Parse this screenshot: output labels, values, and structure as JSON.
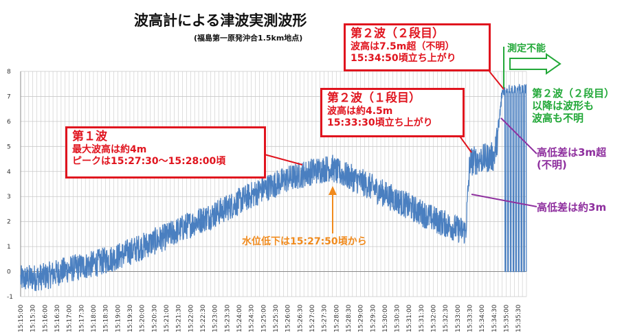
{
  "title": "波高計による津波実測波形",
  "subtitle": "(福島第一原発沖合1.5km地点)",
  "colors": {
    "series": "#4a7fc0",
    "box": "#e0141e",
    "green": "#22a838",
    "purple": "#8e2f9e",
    "orange": "#f08a1c",
    "grid": "#c8c8c8"
  },
  "chart_data": {
    "type": "line",
    "title": "波高計による津波実測波形",
    "subtitle": "(福島第一原発沖合1.5km地点)",
    "xlabel": "",
    "ylabel": "",
    "ylim": [
      -1,
      8
    ],
    "yticks": [
      -1,
      0,
      1,
      2,
      3,
      4,
      5,
      6,
      7,
      8
    ],
    "grid": true,
    "x_tick_labels": [
      "15:15:00",
      "15:15:30",
      "15:16:00",
      "15:16:30",
      "15:17:00",
      "15:17:30",
      "15:18:00",
      "15:18:30",
      "15:19:00",
      "15:19:30",
      "15:20:00",
      "15:20:30",
      "15:21:00",
      "15:21:30",
      "15:22:00",
      "15:22:30",
      "15:23:00",
      "15:23:30",
      "15:24:00",
      "15:24:30",
      "15:25:00",
      "15:25:30",
      "15:26:00",
      "15:26:30",
      "15:27:00",
      "15:27:30",
      "15:28:00",
      "15:28:30",
      "15:29:00",
      "15:29:30",
      "15:30:00",
      "15:30:30",
      "15:31:00",
      "15:31:30",
      "15:32:00",
      "15:32:30",
      "15:33:00",
      "15:33:30",
      "15:34:00",
      "15:34:30",
      "15:35:00",
      "15:35:30"
    ],
    "series": [
      {
        "x": [
          "15:15:00",
          "15:16:00",
          "15:17:00",
          "15:18:00",
          "15:19:00",
          "15:20:00",
          "15:21:00",
          "15:22:00",
          "15:23:00",
          "15:24:00",
          "15:25:00",
          "15:26:00",
          "15:27:00",
          "15:27:30",
          "15:27:50",
          "15:28:00",
          "15:29:00",
          "15:30:00",
          "15:31:00",
          "15:32:00",
          "15:33:00",
          "15:33:20",
          "15:33:30",
          "15:34:00",
          "15:34:30",
          "15:34:40",
          "15:34:50",
          "15:35:00",
          "15:35:30",
          "15:35:50"
        ],
        "values": [
          -0.3,
          -0.2,
          0.1,
          0.3,
          0.6,
          1.0,
          1.4,
          1.9,
          2.3,
          2.8,
          3.3,
          3.7,
          4.0,
          4.1,
          4.15,
          4.0,
          3.6,
          3.1,
          2.6,
          2.1,
          1.7,
          1.6,
          4.4,
          4.5,
          4.6,
          5.5,
          7.2,
          7.3,
          7.3,
          7.3
        ],
        "noise_amplitude": [
          0.55,
          0.55,
          0.55,
          0.55,
          0.55,
          0.55,
          0.55,
          0.55,
          0.55,
          0.55,
          0.55,
          0.55,
          0.55,
          0.55,
          0.55,
          0.55,
          0.55,
          0.55,
          0.55,
          0.55,
          0.55,
          0.55,
          0.6,
          0.6,
          0.6,
          0.6,
          0.2,
          0.2,
          0.2,
          0.2
        ]
      }
    ],
    "annotations": {
      "wave1": {
        "head": "第１波",
        "lines": [
          "最大波高は約4m",
          "ピークは15:27:30～15:28:00頃"
        ]
      },
      "wave2a": {
        "head": "第２波（１段目）",
        "lines": [
          "波高は約4.5m",
          "15:33:30頃立ち上がり"
        ]
      },
      "wave2b": {
        "head": "第２波（２段目）",
        "lines": [
          "波高は7.5m超（不明）",
          "15:34:50頃立ち上がり"
        ]
      },
      "unmeasurable": "測定不能",
      "after": [
        "第２波（２段目）",
        "以降は波形も",
        "波高も不明"
      ],
      "diff_high": [
        "高低差は3m超",
        "(不明)"
      ],
      "diff_low": "高低差は約3m",
      "drop": "水位低下は15:27:50頃から"
    }
  }
}
